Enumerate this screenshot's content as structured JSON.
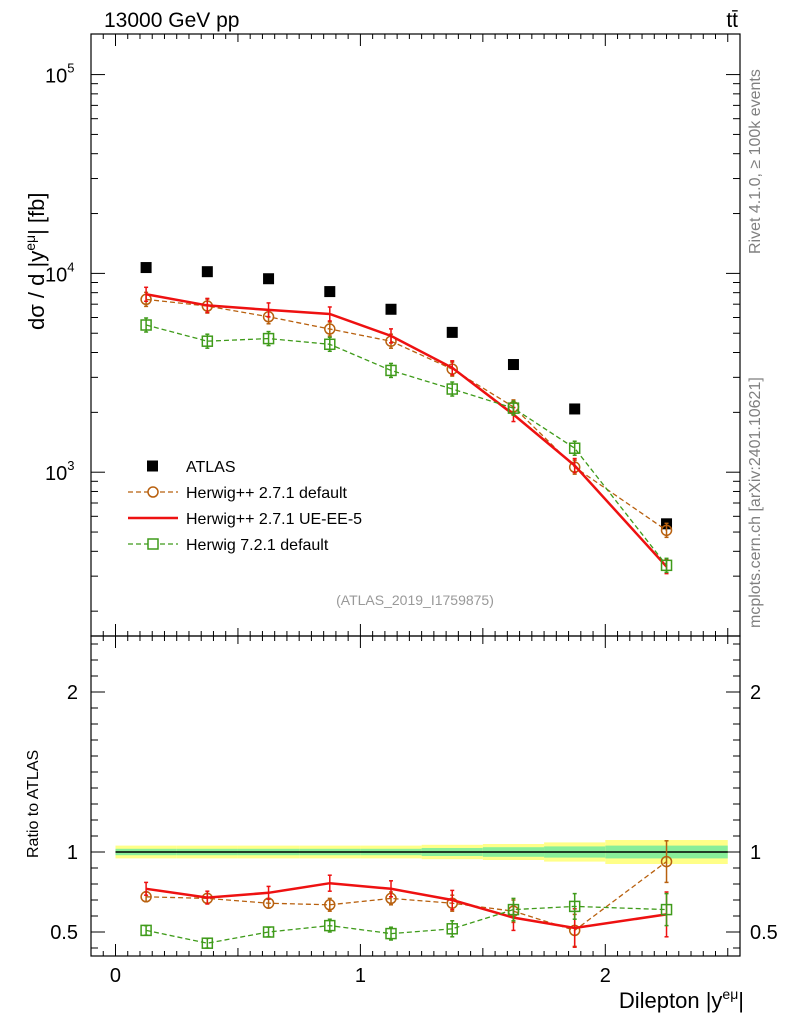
{
  "header": {
    "energy_label": "13000 GeV pp",
    "process_label": "tt̄"
  },
  "side_labels": {
    "rivet": "Rivet 4.1.0, ≥ 100k events",
    "mcplots": "mcplots.cern.ch [arXiv:2401.10621]"
  },
  "colors": {
    "atlas": "#000000",
    "h271def": "#b8600e",
    "h271ue": "#ee1111",
    "h721": "#3f9b1a",
    "band_outer": "#ffff88",
    "band_inner": "#88ee99"
  },
  "chart_data": [
    {
      "type": "scatter",
      "panel": "main",
      "ylabel_prefix": "dσ / d |y",
      "ylabel_sup": "eμ",
      "ylabel_suffix": "| [fb]",
      "yscale": "log",
      "ylim": [
        150,
        160000
      ],
      "xlim": [
        -0.1,
        2.55
      ],
      "y_tick_labels": [
        {
          "base": "10",
          "exp": "3",
          "value": 1000
        },
        {
          "base": "10",
          "exp": "4",
          "value": 10000
        },
        {
          "base": "10",
          "exp": "5",
          "value": 100000
        }
      ],
      "annotation": "(ATLAS_2019_I1759875)",
      "x": [
        0.125,
        0.375,
        0.625,
        0.875,
        1.125,
        1.375,
        1.625,
        1.875,
        2.25
      ],
      "series": [
        {
          "key": "atlas",
          "name": "ATLAS",
          "style": "square-marker",
          "values": [
            10700,
            10200,
            9400,
            8100,
            6600,
            5050,
            3480,
            2080,
            550
          ]
        },
        {
          "key": "h271def",
          "name": "Herwig++ 2.7.1 default",
          "style": "circle-dashed",
          "values": [
            7400,
            6850,
            6050,
            5250,
            4560,
            3300,
            2130,
            1060,
            510
          ]
        },
        {
          "key": "h271ue",
          "name": "Herwig++ 2.7.1 UE-EE-5",
          "style": "solid",
          "values": [
            7850,
            6900,
            6550,
            6250,
            4850,
            3350,
            1950,
            1080,
            335
          ]
        },
        {
          "key": "h721",
          "name": "Herwig 7.2.1 default",
          "style": "square-dashed",
          "values": [
            5500,
            4560,
            4700,
            4400,
            3250,
            2620,
            2100,
            1320,
            340
          ]
        }
      ]
    },
    {
      "type": "scatter",
      "panel": "ratio",
      "ylabel": "Ratio to ATLAS",
      "xlabel_prefix": "Dilepton |y",
      "xlabel_sup": "eμ",
      "xlabel_suffix": "|",
      "ylim": [
        0.35,
        2.35
      ],
      "xlim": [
        -0.1,
        2.55
      ],
      "y_ticks": [
        0.5,
        1,
        2
      ],
      "y_tick_labels": [
        "0.5",
        "1",
        "2"
      ],
      "x_ticks": [
        0,
        1,
        2
      ],
      "x_tick_labels": [
        "0",
        "1",
        "2"
      ],
      "band_edges": [
        0,
        0.25,
        0.5,
        0.75,
        1.0,
        1.25,
        1.5,
        1.75,
        2.0,
        2.5
      ],
      "band_outer_halfwidth": [
        0.04,
        0.04,
        0.04,
        0.04,
        0.04,
        0.045,
        0.05,
        0.06,
        0.075
      ],
      "band_inner_halfwidth": [
        0.02,
        0.02,
        0.02,
        0.02,
        0.02,
        0.025,
        0.03,
        0.035,
        0.04
      ],
      "x": [
        0.125,
        0.375,
        0.625,
        0.875,
        1.125,
        1.375,
        1.625,
        1.875,
        2.25
      ],
      "series": [
        {
          "key": "h271def",
          "values": [
            0.72,
            0.71,
            0.68,
            0.67,
            0.71,
            0.68,
            0.63,
            0.51,
            0.94
          ],
          "errors": [
            0.03,
            0.03,
            0.03,
            0.04,
            0.04,
            0.05,
            0.07,
            0.1,
            0.13
          ]
        },
        {
          "key": "h271ue",
          "values": [
            0.77,
            0.715,
            0.745,
            0.805,
            0.77,
            0.7,
            0.59,
            0.525,
            0.61
          ],
          "errors": [
            0.04,
            0.04,
            0.04,
            0.05,
            0.05,
            0.06,
            0.08,
            0.12,
            0.14
          ]
        },
        {
          "key": "h721",
          "values": [
            0.51,
            0.43,
            0.5,
            0.54,
            0.49,
            0.52,
            0.64,
            0.66,
            0.64
          ],
          "errors": [
            0.03,
            0.03,
            0.03,
            0.04,
            0.04,
            0.05,
            0.07,
            0.08,
            0.1
          ]
        }
      ]
    }
  ]
}
